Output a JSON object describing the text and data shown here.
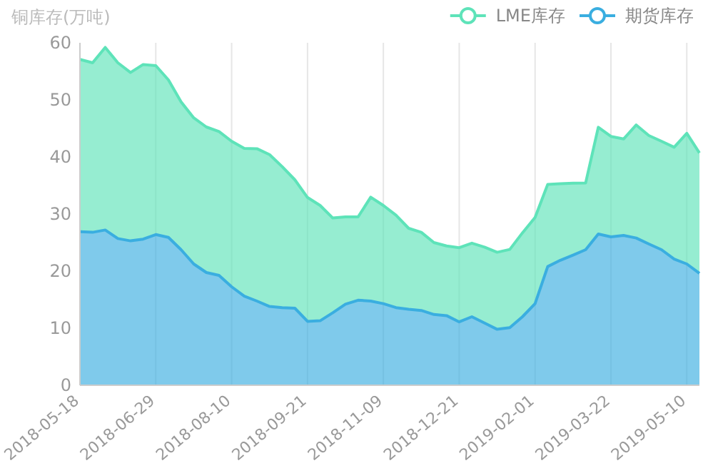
{
  "chart_data": {
    "type": "area",
    "stacked": true,
    "ylabel": "铜库存(万吨)",
    "categories": [
      "2018-05-18",
      null,
      null,
      null,
      null,
      null,
      "2018-06-29",
      null,
      null,
      null,
      null,
      null,
      "2018-08-10",
      null,
      null,
      null,
      null,
      null,
      "2018-09-21",
      null,
      null,
      null,
      null,
      null,
      "2018-11-09",
      null,
      null,
      null,
      null,
      null,
      "2018-12-21",
      null,
      null,
      null,
      null,
      null,
      "2019-02-01",
      null,
      null,
      null,
      null,
      null,
      "2019-03-22",
      null,
      null,
      null,
      null,
      null,
      "2019-05-10",
      null
    ],
    "series": [
      {
        "name": "期货库存",
        "color": "#3aaee0",
        "values": [
          26.9,
          26.8,
          27.2,
          25.7,
          25.3,
          25.6,
          26.4,
          25.9,
          23.75,
          21.25,
          19.75,
          19.25,
          17.25,
          15.6,
          14.75,
          13.8,
          13.6,
          13.5,
          11.2,
          11.3,
          12.7,
          14.2,
          14.9,
          14.75,
          14.3,
          13.6,
          13.3,
          13.1,
          12.4,
          12.2,
          11.1,
          12.0,
          10.9,
          9.8,
          10.1,
          12.0,
          14.3,
          20.8,
          21.9,
          22.8,
          23.75,
          26.5,
          26.0,
          26.25,
          25.8,
          24.75,
          23.75,
          22.1,
          21.25,
          19.6
        ]
      },
      {
        "name": "LME库存",
        "color": "#5ee3b9",
        "values": [
          30.2,
          29.7,
          32.0,
          30.8,
          29.5,
          30.6,
          29.6,
          27.6,
          25.9,
          25.6,
          25.5,
          25.2,
          25.5,
          25.9,
          26.7,
          26.6,
          24.7,
          22.5,
          21.7,
          20.2,
          16.6,
          15.3,
          14.6,
          18.2,
          17.2,
          16.2,
          14.2,
          13.7,
          12.6,
          12.2,
          13.0,
          12.9,
          13.3,
          13.5,
          13.7,
          14.7,
          15.1,
          14.4,
          13.4,
          12.6,
          11.7,
          18.7,
          17.6,
          16.9,
          19.8,
          19.0,
          19.0,
          19.6,
          22.9,
          21.1
        ]
      }
    ],
    "ylim": [
      0,
      60
    ],
    "yticks": [
      0,
      10,
      20,
      30,
      40,
      50,
      60
    ],
    "grid": "x",
    "legend": "top right",
    "marker": "none"
  }
}
